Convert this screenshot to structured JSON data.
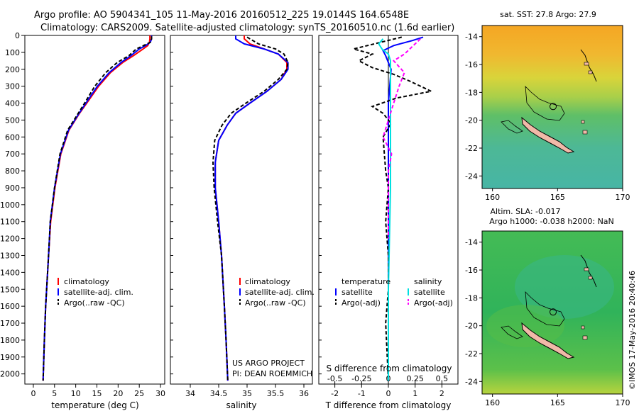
{
  "header": {
    "title_line1": "Argo profile: AO 5904341_105 11-May-2016 20160512_225 19.0144S 164.6548E",
    "title_line2": "Climatology: CARS2009. Satellite-adjusted climatology: synTS_20160510.nc (1.6d earlier)"
  },
  "maps": {
    "sst_title": "sat. SST: 27.8 Argo: 27.9",
    "sla_title_line1": "Altim. SLA: -0.017",
    "sla_title_line2": "Argo h1000: -0.038 h2000: NaN",
    "lat_ticks": [
      "-14",
      "-16",
      "-18",
      "-20",
      "-22",
      "-24"
    ],
    "lon_ticks": [
      "160",
      "165",
      "170"
    ],
    "lat_values": [
      -14,
      -16,
      -18,
      -20,
      -22,
      -24
    ],
    "lon_values": [
      160,
      165,
      170
    ],
    "lon_range": [
      159.2,
      170
    ],
    "lat_range": [
      -24.9,
      -13.2
    ],
    "argo_position": {
      "lon": 164.6548,
      "lat": -19.0144
    },
    "credit": "©IMOS 17-May-2016 20:40:46"
  },
  "annotations": {
    "project_line1": "US ARGO PROJECT",
    "project_line2": "PI: DEAN ROEMMICH",
    "s_diff_label": "S difference from climatology"
  },
  "legends": {
    "temp": [
      "climatology",
      "satellite-adj. clim.",
      "Argo(..raw -QC)"
    ],
    "sal": [
      "climatology",
      "satellite-adj. clim.",
      "Argo(..raw -QC)"
    ],
    "diff_temp_header": "temperature",
    "diff_sal_header": "salinity",
    "diff_temp": [
      "satellite",
      "Argo(-adj)"
    ],
    "diff_sal": [
      "satellite",
      "Argo(-adj)"
    ]
  },
  "colors": {
    "climatology": "#ff0000",
    "satellite": "#0000ff",
    "argo": "#000000",
    "s_satellite": "#00e0e0",
    "s_argo": "#ff00ff"
  },
  "chart_data": [
    {
      "type": "line",
      "xlabel": "temperature (deg C)",
      "ylabel": "",
      "xlim": [
        -2,
        31
      ],
      "ylim": [
        0,
        2060
      ],
      "y_inverted": true,
      "xticks": [
        0,
        5,
        10,
        15,
        20,
        25,
        30
      ],
      "yticks": [
        0,
        100,
        200,
        300,
        400,
        500,
        600,
        700,
        800,
        900,
        1000,
        1100,
        1200,
        1300,
        1400,
        1500,
        1600,
        1700,
        1800,
        1900,
        2000
      ],
      "series": [
        {
          "name": "climatology",
          "x": [
            27.5,
            27.5,
            27.4,
            27.0,
            25.9,
            23.6,
            21.1,
            18.2,
            15.4,
            12.6,
            10.9,
            8.4,
            6.5,
            5.1,
            4.1,
            3.6,
            2.9,
            2.6,
            2.3
          ],
          "y": [
            0,
            20,
            40,
            60,
            80,
            120,
            160,
            220,
            300,
            400,
            460,
            560,
            700,
            900,
            1100,
            1300,
            1600,
            1800,
            2040
          ]
        },
        {
          "name": "satellite-adj. clim.",
          "x": [
            27.9,
            27.9,
            27.6,
            26.5,
            25.0,
            23.0,
            20.7,
            17.9,
            15.1,
            12.4,
            10.8,
            8.3,
            6.4,
            5.0,
            4.0,
            3.6,
            2.9,
            2.6,
            2.3
          ],
          "y": [
            0,
            20,
            40,
            60,
            80,
            120,
            160,
            220,
            300,
            400,
            460,
            560,
            700,
            900,
            1100,
            1300,
            1600,
            1800,
            2040
          ]
        },
        {
          "name": "Argo(..raw -QC)",
          "x": [
            27.9,
            27.9,
            27.6,
            26.0,
            24.3,
            22.5,
            19.8,
            17.1,
            14.5,
            12.1,
            10.6,
            8.1,
            6.3,
            5.0,
            4.0,
            3.6,
            2.9,
            2.6,
            2.3
          ],
          "y": [
            5,
            20,
            40,
            60,
            80,
            120,
            160,
            220,
            300,
            400,
            460,
            560,
            700,
            900,
            1100,
            1300,
            1600,
            1800,
            2040
          ]
        }
      ]
    },
    {
      "type": "line",
      "xlabel": "salinity",
      "ylabel": "",
      "xlim": [
        33.65,
        36.15
      ],
      "ylim": [
        0,
        2060
      ],
      "y_inverted": true,
      "xticks": [
        34,
        34.5,
        35,
        35.5,
        36
      ],
      "series": [
        {
          "name": "climatology",
          "x": [
            34.95,
            34.95,
            35.05,
            35.3,
            35.55,
            35.7,
            35.7,
            35.6,
            35.35,
            35.05,
            34.8,
            34.65,
            34.5,
            34.44,
            34.44,
            34.5,
            34.55,
            34.6,
            34.63,
            34.66
          ],
          "y": [
            0,
            20,
            50,
            80,
            110,
            160,
            200,
            260,
            330,
            400,
            460,
            530,
            620,
            750,
            900,
            1100,
            1300,
            1600,
            1800,
            2040
          ]
        },
        {
          "name": "satellite-adj. clim.",
          "x": [
            34.8,
            34.8,
            34.95,
            35.3,
            35.55,
            35.72,
            35.72,
            35.6,
            35.35,
            35.05,
            34.8,
            34.65,
            34.5,
            34.44,
            34.44,
            34.5,
            34.55,
            34.6,
            34.63,
            34.66
          ],
          "y": [
            0,
            20,
            50,
            80,
            110,
            160,
            200,
            260,
            330,
            400,
            460,
            530,
            620,
            750,
            900,
            1100,
            1300,
            1600,
            1800,
            2040
          ]
        },
        {
          "name": "Argo(..raw -QC)",
          "x": [
            35.0,
            35.05,
            35.2,
            35.5,
            35.65,
            35.72,
            35.7,
            35.55,
            35.3,
            34.98,
            34.72,
            34.56,
            34.43,
            34.4,
            34.42,
            34.48,
            34.55,
            34.6,
            34.63,
            34.66
          ],
          "y": [
            10,
            20,
            50,
            80,
            110,
            160,
            200,
            260,
            330,
            400,
            460,
            530,
            620,
            750,
            900,
            1100,
            1300,
            1600,
            1800,
            2040
          ]
        }
      ]
    },
    {
      "type": "line",
      "xlabel": "T difference from climatology",
      "x2label": "S difference from climatology",
      "ylabel": "",
      "xlim": [
        -2.6,
        2.6
      ],
      "ylim": [
        0,
        2060
      ],
      "y_inverted": true,
      "xticks": [
        -2,
        -1,
        0,
        1,
        2
      ],
      "x2lim": [
        -0.65,
        0.65
      ],
      "x2ticks": [
        -0.5,
        -0.25,
        0,
        0.25,
        0.5
      ],
      "x2ticklabels": [
        "-0.5",
        "-0.25",
        "0",
        "0.25",
        "0.5"
      ],
      "series": [
        {
          "name": "temperature satellite",
          "x": [
            1.3,
            0.9,
            0.2,
            -0.2,
            -0.1,
            0.1,
            0.05,
            0,
            0,
            0,
            0
          ],
          "y": [
            10,
            30,
            60,
            90,
            120,
            200,
            300,
            400,
            600,
            1000,
            2040
          ]
        },
        {
          "name": "temperature Argo(-adj)",
          "x": [
            0.5,
            -1.3,
            -0.6,
            -1.1,
            -0.6,
            0.2,
            0.8,
            1.6,
            0.3,
            -0.6,
            -0.2,
            0.1,
            -0.2,
            -0.1,
            0,
            -0.1,
            0,
            0,
            -0.1,
            0
          ],
          "y": [
            10,
            80,
            110,
            150,
            190,
            230,
            270,
            330,
            370,
            420,
            460,
            520,
            600,
            800,
            900,
            1100,
            1300,
            1500,
            1700,
            2040
          ]
        },
        {
          "name": "salinity satellite",
          "x": [
            -0.05,
            -0.09,
            -0.06,
            0,
            0.02,
            0.02,
            0.02,
            0.02,
            0.02,
            0.02,
            0.02,
            0.01,
            0,
            0
          ],
          "y": [
            20,
            50,
            80,
            110,
            150,
            200,
            300,
            400,
            500,
            700,
            900,
            1200,
            1500,
            2040
          ]
        },
        {
          "name": "salinity Argo(-adj)",
          "x": [
            0.3,
            0.25,
            0.2,
            0.15,
            0.05,
            0.15,
            0.1,
            0.05,
            0,
            -0.05,
            0.03,
            0,
            0,
            0
          ],
          "y": [
            20,
            50,
            80,
            110,
            150,
            220,
            300,
            400,
            500,
            600,
            700,
            800,
            1000,
            1200
          ]
        }
      ]
    }
  ]
}
